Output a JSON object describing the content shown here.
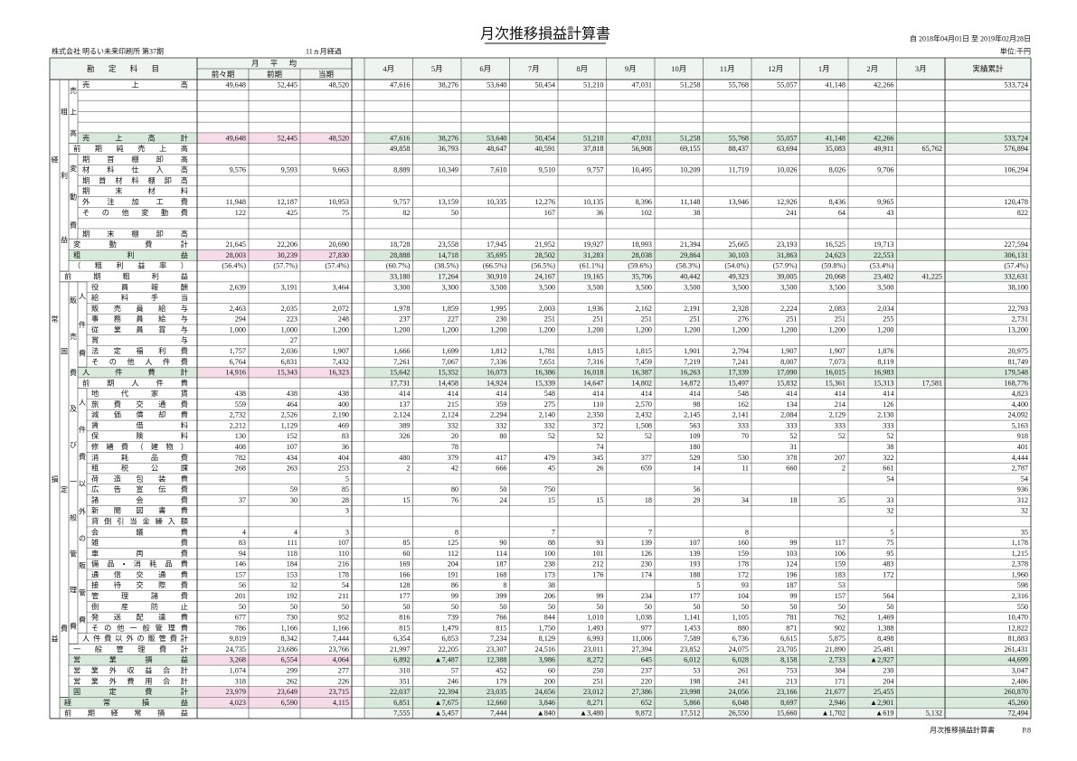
{
  "header": {
    "title": "月次推移損益計算書",
    "period": "自 2018年04月01日 至 2019年02月28日",
    "company": "株式会社 明るい未来印刷所 第37期",
    "elapsed": "11ヵ月経過",
    "unit": "単位:千円"
  },
  "table": {
    "account_header": "勘定科目",
    "average_header": "月平均",
    "columns": [
      "前々期",
      "前期",
      "当期",
      "4月",
      "5月",
      "6月",
      "7月",
      "8月",
      "9月",
      "10月",
      "11月",
      "12月",
      "1月",
      "2月",
      "3月",
      "実績累計"
    ],
    "side_labels": [
      "経常損益",
      "粗利益",
      "固定費",
      "売上高",
      "変動費",
      "販売費及び一般管理費",
      "人件費",
      "人件費以外の販管費"
    ],
    "rows": [
      {
        "label": "売上高",
        "values": [
          "49,648",
          "52,445",
          "48,520",
          "47,616",
          "38,276",
          "53,640",
          "50,454",
          "51,210",
          "47,031",
          "51,258",
          "55,768",
          "55,057",
          "41,148",
          "42,266",
          null,
          "533,724"
        ]
      },
      null,
      null,
      null,
      null,
      {
        "label": "売上高計",
        "values": [
          "49,648",
          "52,445",
          "48,520",
          "47,616",
          "38,276",
          "53,640",
          "50,454",
          "51,210",
          "47,031",
          "51,258",
          "55,768",
          "55,057",
          "41,148",
          "42,266",
          null,
          "533,724"
        ]
      },
      {
        "label": "前期純売上高",
        "values": [
          null,
          null,
          null,
          "49,858",
          "36,793",
          "48,647",
          "40,591",
          "37,818",
          "56,908",
          "69,155",
          "88,437",
          "63,694",
          "35,083",
          "49,911",
          "65,762",
          "576,894"
        ]
      },
      {
        "label": "期首棚卸高"
      },
      {
        "label": "材料仕入高",
        "values": [
          "9,576",
          "9,593",
          "9,663",
          "8,889",
          "10,349",
          "7,610",
          "9,510",
          "9,757",
          "10,495",
          "10,209",
          "11,719",
          "10,026",
          "8,026",
          "9,706",
          null,
          "106,294"
        ]
      },
      {
        "label": "期首材料棚卸高"
      },
      {
        "label": "期末材料"
      },
      {
        "label": "外注加工費",
        "values": [
          "11,948",
          "12,187",
          "10,953",
          "9,757",
          "13,159",
          "10,335",
          "12,276",
          "10,135",
          "8,396",
          "11,148",
          "13,946",
          "12,926",
          "8,436",
          "9,965",
          null,
          "120,478"
        ]
      },
      {
        "label": "その他変動費",
        "values": [
          "122",
          "425",
          "75",
          "82",
          "50",
          null,
          "167",
          "36",
          "102",
          "38",
          null,
          "241",
          "64",
          "43",
          null,
          "822"
        ]
      },
      null,
      {
        "label": "期末棚卸高"
      },
      {
        "label": "変動費計",
        "values": [
          "21,645",
          "22,206",
          "20,690",
          "18,728",
          "23,558",
          "17,945",
          "21,952",
          "19,927",
          "18,993",
          "21,394",
          "25,665",
          "23,193",
          "16,525",
          "19,713",
          null,
          "227,594"
        ]
      },
      {
        "label": "粗利益",
        "values": [
          "28,003",
          "30,239",
          "27,830",
          "28,888",
          "14,718",
          "35,695",
          "28,502",
          "31,283",
          "28,038",
          "29,864",
          "30,103",
          "31,863",
          "24,623",
          "22,553",
          null,
          "306,131"
        ]
      },
      {
        "label": "（粗利益率）",
        "values": [
          "(56.4%)",
          "(57.7%)",
          "(57.4%)",
          "(60.7%)",
          "(38.5%)",
          "(66.5%)",
          "(56.5%)",
          "(61.1%)",
          "(59.6%)",
          "(58.3%)",
          "(54.0%)",
          "(57.9%)",
          "(59.8%)",
          "(53.4%)",
          null,
          "(57.4%)"
        ]
      },
      {
        "label": "前期粗利益",
        "values": [
          null,
          null,
          null,
          "33,180",
          "17,264",
          "30,910",
          "24,167",
          "19,165",
          "35,706",
          "40,442",
          "49,323",
          "39,005",
          "20,068",
          "23,402",
          "41,225",
          "332,631"
        ]
      },
      {
        "label": "役員報酬",
        "values": [
          "2,639",
          "3,191",
          "3,464",
          "3,300",
          "3,300",
          "3,500",
          "3,500",
          "3,500",
          "3,500",
          "3,500",
          "3,500",
          "3,500",
          "3,500",
          "3,500",
          null,
          "38,100"
        ]
      },
      {
        "label": "給料手当"
      },
      {
        "label": "販売員給与",
        "values": [
          "2,463",
          "2,035",
          "2,072",
          "1,978",
          "1,859",
          "1,995",
          "2,003",
          "1,936",
          "2,162",
          "2,191",
          "2,328",
          "2,224",
          "2,083",
          "2,034",
          null,
          "22,793"
        ]
      },
      {
        "label": "事務員給与",
        "values": [
          "294",
          "223",
          "248",
          "237",
          "227",
          "230",
          "251",
          "251",
          "251",
          "251",
          "276",
          "251",
          "251",
          "255",
          null,
          "2,731"
        ]
      },
      {
        "label": "従業員賞与",
        "values": [
          "1,000",
          "1,000",
          "1,200",
          "1,200",
          "1,200",
          "1,200",
          "1,200",
          "1,200",
          "1,200",
          "1,200",
          "1,200",
          "1,200",
          "1,200",
          "1,200",
          null,
          "13,200"
        ]
      },
      {
        "label": "賞与",
        "values": [
          null,
          "27",
          null,
          null,
          null,
          null,
          null,
          null,
          null,
          null,
          null,
          null,
          null,
          null,
          null,
          null
        ]
      },
      {
        "label": "法定福利費",
        "values": [
          "1,757",
          "2,036",
          "1,907",
          "1,666",
          "1,699",
          "1,812",
          "1,781",
          "1,815",
          "1,815",
          "1,901",
          "2,794",
          "1,907",
          "1,907",
          "1,876",
          null,
          "20,975"
        ]
      },
      {
        "label": "その他人件費",
        "values": [
          "6,764",
          "6,831",
          "7,432",
          "7,261",
          "7,067",
          "7,336",
          "7,651",
          "7,316",
          "7,459",
          "7,219",
          "7,241",
          "8,007",
          "7,073",
          "8,119",
          null,
          "81,749"
        ]
      },
      {
        "label": "人件費計",
        "values": [
          "14,916",
          "15,343",
          "16,323",
          "15,642",
          "15,352",
          "16,073",
          "16,386",
          "16,018",
          "16,387",
          "16,263",
          "17,339",
          "17,090",
          "16,015",
          "16,983",
          null,
          "179,548"
        ]
      },
      {
        "label": "前期人件費",
        "values": [
          null,
          null,
          null,
          "17,731",
          "14,458",
          "14,924",
          "15,339",
          "14,647",
          "14,802",
          "14,872",
          "15,497",
          "15,832",
          "15,361",
          "15,313",
          "17,581",
          "168,776"
        ]
      },
      {
        "label": "地代家賃",
        "values": [
          "438",
          "438",
          "438",
          "414",
          "414",
          "414",
          "548",
          "414",
          "414",
          "414",
          "548",
          "414",
          "414",
          "414",
          null,
          "4,823"
        ]
      },
      {
        "label": "旅費交通費",
        "values": [
          "559",
          "464",
          "400",
          "137",
          "215",
          "359",
          "275",
          "110",
          "2,570",
          "98",
          "162",
          "134",
          "214",
          "126",
          null,
          "4,400"
        ]
      },
      {
        "label": "減価償却費",
        "values": [
          "2,732",
          "2,526",
          "2,190",
          "2,124",
          "2,124",
          "2,294",
          "2,140",
          "2,350",
          "2,432",
          "2,145",
          "2,141",
          "2,084",
          "2,129",
          "2,130",
          null,
          "24,092"
        ]
      },
      {
        "label": "賃借料",
        "values": [
          "2,212",
          "1,129",
          "469",
          "389",
          "332",
          "332",
          "332",
          "372",
          "1,508",
          "563",
          "333",
          "333",
          "333",
          "333",
          null,
          "5,163"
        ]
      },
      {
        "label": "保険料",
        "values": [
          "130",
          "152",
          "83",
          "326",
          "20",
          "80",
          "52",
          "52",
          "52",
          "109",
          "70",
          "52",
          "52",
          "52",
          null,
          "918"
        ]
      },
      {
        "label": "修繕費（建物）",
        "values": [
          "408",
          "107",
          "36",
          null,
          "78",
          null,
          null,
          "74",
          null,
          "180",
          null,
          "31",
          null,
          "38",
          null,
          "401"
        ]
      },
      {
        "label": "消耗品費",
        "values": [
          "782",
          "434",
          "404",
          "480",
          "379",
          "417",
          "479",
          "345",
          "377",
          "529",
          "530",
          "378",
          "207",
          "322",
          null,
          "4,444"
        ]
      },
      {
        "label": "租税公課",
        "values": [
          "268",
          "263",
          "253",
          "2",
          "42",
          "666",
          "45",
          "26",
          "659",
          "14",
          "11",
          "660",
          "2",
          "661",
          null,
          "2,787"
        ]
      },
      {
        "label": "荷造包装費",
        "values": [
          null,
          null,
          "5",
          null,
          null,
          null,
          null,
          null,
          null,
          null,
          null,
          null,
          null,
          "54",
          null,
          "54"
        ]
      },
      {
        "label": "広告宣伝費",
        "values": [
          null,
          "59",
          "85",
          null,
          "80",
          "50",
          "750",
          null,
          null,
          "56",
          null,
          null,
          null,
          null,
          null,
          "936"
        ]
      },
      {
        "label": "諸会費",
        "values": [
          "37",
          "30",
          "28",
          "15",
          "76",
          "24",
          "15",
          "15",
          "18",
          "29",
          "34",
          "18",
          "35",
          "33",
          null,
          "312"
        ]
      },
      {
        "label": "新聞図書費",
        "values": [
          null,
          null,
          "3",
          null,
          null,
          null,
          null,
          null,
          null,
          null,
          null,
          null,
          null,
          "32",
          null,
          "32"
        ]
      },
      {
        "label": "貸倒引当金繰入額"
      },
      {
        "label": "会議費",
        "values": [
          "4",
          "4",
          "3",
          null,
          "8",
          null,
          "7",
          null,
          "7",
          null,
          "8",
          null,
          null,
          "5",
          null,
          "35"
        ]
      },
      {
        "label": "雑費",
        "values": [
          "83",
          "111",
          "107",
          "85",
          "125",
          "90",
          "88",
          "93",
          "139",
          "107",
          "160",
          "99",
          "117",
          "75",
          null,
          "1,178"
        ]
      },
      {
        "label": "車両費",
        "values": [
          "94",
          "118",
          "110",
          "60",
          "112",
          "114",
          "100",
          "101",
          "126",
          "139",
          "159",
          "103",
          "106",
          "95",
          null,
          "1,215"
        ]
      },
      {
        "label": "備品・消耗品費",
        "values": [
          "146",
          "184",
          "216",
          "169",
          "204",
          "187",
          "238",
          "212",
          "230",
          "193",
          "178",
          "124",
          "159",
          "483",
          null,
          "2,378"
        ]
      },
      {
        "label": "通信交通費",
        "values": [
          "157",
          "153",
          "178",
          "166",
          "191",
          "168",
          "173",
          "176",
          "174",
          "188",
          "172",
          "196",
          "183",
          "172",
          null,
          "1,960"
        ]
      },
      {
        "label": "接待交際費",
        "values": [
          "56",
          "32",
          "54",
          "128",
          "86",
          "8",
          "38",
          null,
          null,
          "5",
          "93",
          "187",
          "53",
          null,
          null,
          "598"
        ]
      },
      {
        "label": "管理諸費",
        "values": [
          "201",
          "192",
          "211",
          "177",
          "99",
          "399",
          "206",
          "99",
          "234",
          "177",
          "104",
          "99",
          "157",
          "564",
          null,
          "2,316"
        ]
      },
      {
        "label": "倒産防止",
        "values": [
          "50",
          "50",
          "50",
          "50",
          "50",
          "50",
          "50",
          "50",
          "50",
          "50",
          "50",
          "50",
          "50",
          "50",
          null,
          "550"
        ]
      },
      {
        "label": "発送配達費",
        "values": [
          "677",
          "730",
          "952",
          "816",
          "739",
          "766",
          "844",
          "1,010",
          "1,038",
          "1,141",
          "1,105",
          "781",
          "762",
          "1,469",
          null,
          "10,470"
        ]
      },
      {
        "label": "その他一般管理費",
        "values": [
          "786",
          "1,166",
          "1,166",
          "815",
          "1,479",
          "815",
          "1,750",
          "1,493",
          "977",
          "1,453",
          "880",
          "871",
          "902",
          "1,388",
          null,
          "12,822"
        ]
      },
      {
        "label": "人件費以外の販管費計",
        "values": [
          "9,819",
          "8,342",
          "7,444",
          "6,354",
          "6,853",
          "7,234",
          "8,129",
          "6,993",
          "11,006",
          "7,589",
          "6,736",
          "6,615",
          "5,875",
          "8,498",
          null,
          "81,883"
        ]
      },
      {
        "label": "一般管理費計",
        "values": [
          "24,735",
          "23,686",
          "23,766",
          "21,997",
          "22,205",
          "23,307",
          "24,516",
          "23,011",
          "27,394",
          "23,852",
          "24,075",
          "23,705",
          "21,890",
          "25,481",
          null,
          "261,431"
        ]
      },
      {
        "label": "営業損益",
        "values": [
          "3,268",
          "6,554",
          "4,064",
          "6,892",
          "▲7,487",
          "12,388",
          "3,986",
          "8,272",
          "645",
          "6,012",
          "6,028",
          "8,158",
          "2,733",
          "▲2,927",
          null,
          "44,699"
        ]
      },
      {
        "label": "営業外収益合計",
        "values": [
          "1,074",
          "299",
          "277",
          "310",
          "57",
          "452",
          "60",
          "250",
          "237",
          "53",
          "261",
          "753",
          "384",
          "230",
          null,
          "3,047"
        ]
      },
      {
        "label": "営業外費用合計",
        "values": [
          "318",
          "262",
          "226",
          "351",
          "246",
          "179",
          "200",
          "251",
          "220",
          "198",
          "241",
          "213",
          "171",
          "204",
          null,
          "2,486"
        ]
      },
      {
        "label": "固定費計",
        "values": [
          "23,979",
          "23,649",
          "23,715",
          "22,037",
          "22,394",
          "23,035",
          "24,656",
          "23,012",
          "27,386",
          "23,998",
          "24,056",
          "23,166",
          "21,677",
          "25,455",
          null,
          "260,870"
        ]
      },
      {
        "label": "経常損益",
        "values": [
          "4,023",
          "6,590",
          "4,115",
          "6,851",
          "▲7,675",
          "12,660",
          "3,846",
          "8,271",
          "652",
          "5,866",
          "6,048",
          "8,697",
          "2,946",
          "▲2,901",
          null,
          "45,260"
        ]
      },
      {
        "label": "前期経常損益",
        "values": [
          null,
          null,
          null,
          "7,555",
          "▲5,457",
          "7,444",
          "▲840",
          "▲3,480",
          "9,872",
          "17,512",
          "26,550",
          "15,660",
          "▲1,702",
          "▲619",
          "5,132",
          "72,494"
        ]
      }
    ]
  },
  "footer": {
    "text": "月次推移損益計算書",
    "page": "P.8"
  }
}
